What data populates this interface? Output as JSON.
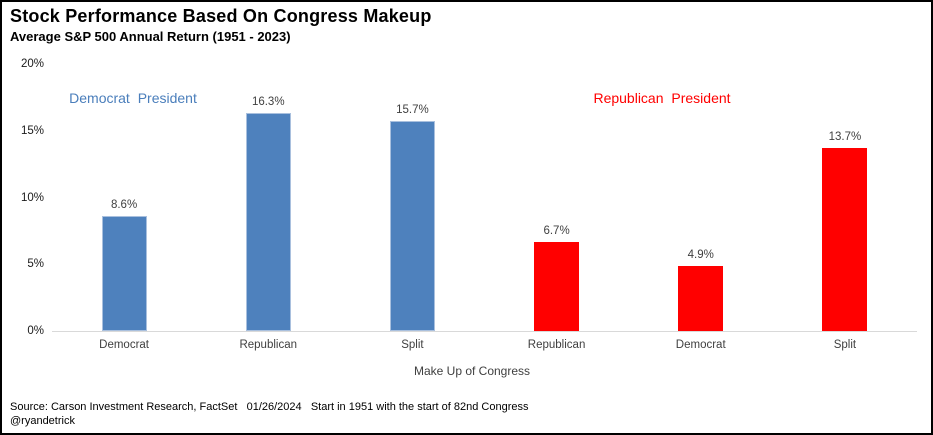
{
  "title": "Stock Performance Based On Congress Makeup",
  "subtitle": "Average S&P 500 Annual Return (1951 - 2023)",
  "annotations": {
    "left": {
      "text": "Democrat President",
      "color": "#4a7ebb"
    },
    "right": {
      "text": "Republican President",
      "color": "#ff0000"
    }
  },
  "chart_data": {
    "type": "bar",
    "title": "Stock Performance Based On Congress Makeup",
    "subtitle": "Average S&P 500 Annual Return (1951 - 2023)",
    "categories": [
      "Democrat",
      "Republican",
      "Split",
      "Republican",
      "Democrat",
      "Split"
    ],
    "values": [
      8.6,
      16.3,
      15.7,
      6.7,
      4.9,
      13.7
    ],
    "value_labels": [
      "8.6%",
      "16.3%",
      "15.7%",
      "6.7%",
      "4.9%",
      "13.7%"
    ],
    "bar_colors": [
      "#4e81bd",
      "#4e81bd",
      "#4e81bd",
      "#ff0000",
      "#ff0000",
      "#ff0000"
    ],
    "groups": [
      "Democrat President",
      "Democrat President",
      "Democrat President",
      "Republican President",
      "Republican President",
      "Republican President"
    ],
    "xlabel": "Make Up of Congress",
    "ylabel": "",
    "ylim": [
      0,
      20
    ],
    "ytick_labels": [
      "0%",
      "5%",
      "10%",
      "15%",
      "20%"
    ],
    "ytick_values": [
      0,
      5,
      10,
      15,
      20
    ],
    "grid": false,
    "legend": "none",
    "colors": {
      "democrat_president_bars": "#4e81bd",
      "republican_president_bars": "#ff0000",
      "axis_line": "#d9d9d9"
    }
  },
  "footer": {
    "source": "Source: Carson Investment Research, FactSet   01/26/2024   Start in 1951 with the start of 82nd Congress",
    "handle": "@ryandetrick"
  }
}
